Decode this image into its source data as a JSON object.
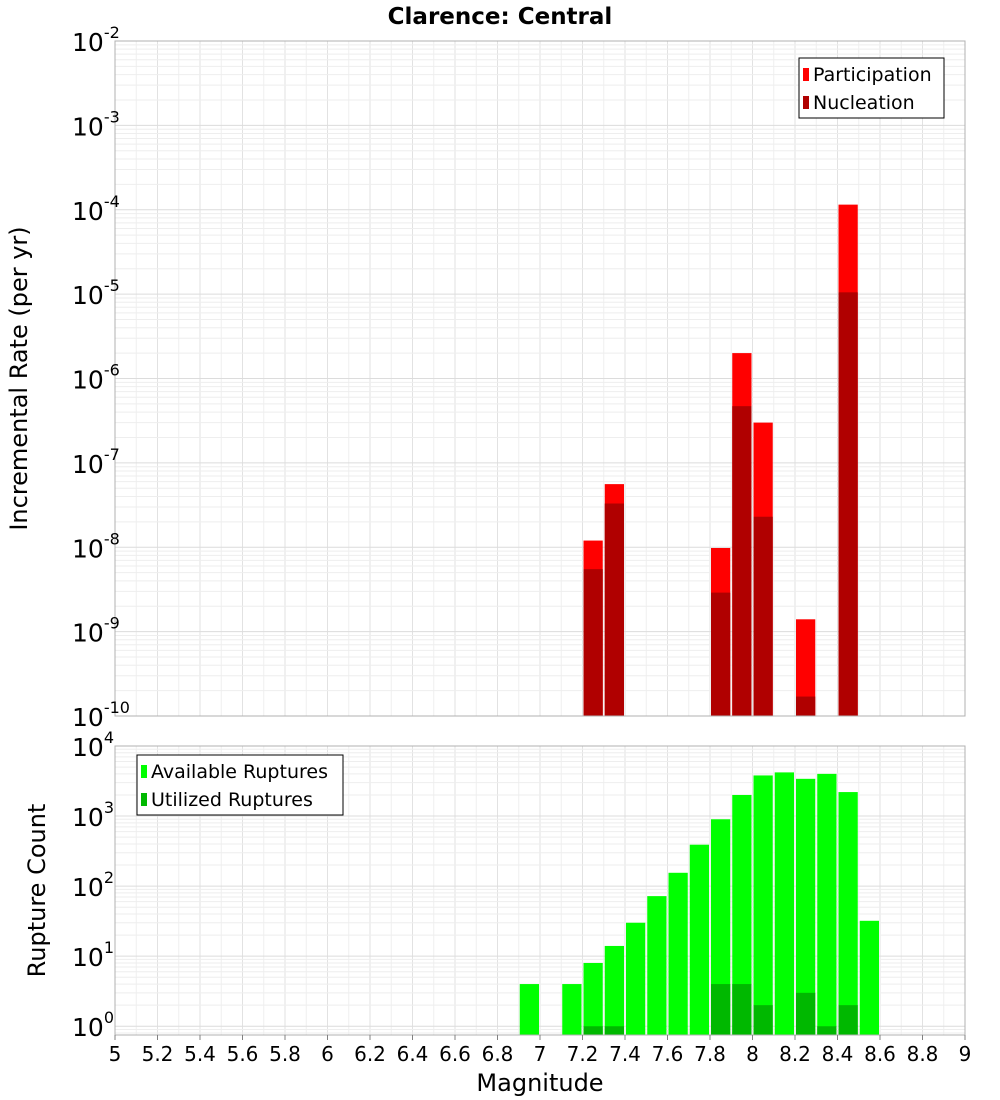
{
  "title": "Clarence: Central",
  "chart_data": [
    {
      "type": "bar",
      "yscale": "log",
      "ylabel": "Incremental Rate (per yr)",
      "xlim": [
        5,
        9
      ],
      "ylim": [
        1e-10,
        0.01
      ],
      "y_ticks": [
        {
          "base": "10",
          "exp": "-10",
          "value": 1e-10
        },
        {
          "base": "10",
          "exp": "-9",
          "value": 1e-09
        },
        {
          "base": "10",
          "exp": "-8",
          "value": 1e-08
        },
        {
          "base": "10",
          "exp": "-7",
          "value": 1e-07
        },
        {
          "base": "10",
          "exp": "-6",
          "value": 1e-06
        },
        {
          "base": "10",
          "exp": "-5",
          "value": 1e-05
        },
        {
          "base": "10",
          "exp": "-4",
          "value": 0.0001
        },
        {
          "base": "10",
          "exp": "-3",
          "value": 0.001
        },
        {
          "base": "10",
          "exp": "-2",
          "value": 0.01
        }
      ],
      "grid": true,
      "legend_position": "top-right",
      "series": [
        {
          "name": "Participation",
          "color": "#ff0000",
          "x": [
            7.25,
            7.35,
            7.85,
            7.95,
            8.05,
            8.25,
            8.45
          ],
          "values": [
            1.2e-08,
            5.6e-08,
            9.8e-09,
            2e-06,
            3e-07,
            1.4e-09,
            0.000115
          ]
        },
        {
          "name": "Nucleation",
          "color": "#b00000",
          "x": [
            7.25,
            7.35,
            7.85,
            7.95,
            8.05,
            8.25,
            8.45
          ],
          "values": [
            5.5e-09,
            3.3e-08,
            2.9e-09,
            4.7e-07,
            2.3e-08,
            1.7e-10,
            1.05e-05
          ]
        }
      ]
    },
    {
      "type": "bar",
      "yscale": "log",
      "ylabel": "Rupture Count",
      "xlabel": "Magnitude",
      "xlim": [
        5,
        9
      ],
      "ylim": [
        0.75,
        10000
      ],
      "x_ticks": [
        "5",
        "5.2",
        "5.4",
        "5.6",
        "5.8",
        "6",
        "6.2",
        "6.4",
        "6.6",
        "6.8",
        "7",
        "7.2",
        "7.4",
        "7.6",
        "7.8",
        "8",
        "8.2",
        "8.4",
        "8.6",
        "8.8",
        "9"
      ],
      "y_ticks": [
        {
          "base": "10",
          "exp": "0",
          "value": 1
        },
        {
          "base": "10",
          "exp": "1",
          "value": 10
        },
        {
          "base": "10",
          "exp": "2",
          "value": 100
        },
        {
          "base": "10",
          "exp": "3",
          "value": 1000
        },
        {
          "base": "10",
          "exp": "4",
          "value": 10000
        }
      ],
      "grid": true,
      "legend_position": "top-left",
      "series": [
        {
          "name": "Available Ruptures",
          "color": "#00ff00",
          "x": [
            6.95,
            7.15,
            7.25,
            7.35,
            7.45,
            7.55,
            7.65,
            7.75,
            7.85,
            7.95,
            8.05,
            8.15,
            8.25,
            8.35,
            8.45,
            8.55
          ],
          "values": [
            4,
            4,
            8,
            14,
            30,
            72,
            155,
            390,
            900,
            2000,
            3800,
            4200,
            3400,
            4000,
            2200,
            32
          ]
        },
        {
          "name": "Utilized Ruptures",
          "color": "#00b800",
          "x": [
            7.25,
            7.35,
            7.85,
            7.95,
            8.05,
            8.25,
            8.35,
            8.45
          ],
          "values": [
            1,
            1,
            4,
            4,
            2,
            3,
            1,
            2
          ]
        }
      ]
    }
  ]
}
